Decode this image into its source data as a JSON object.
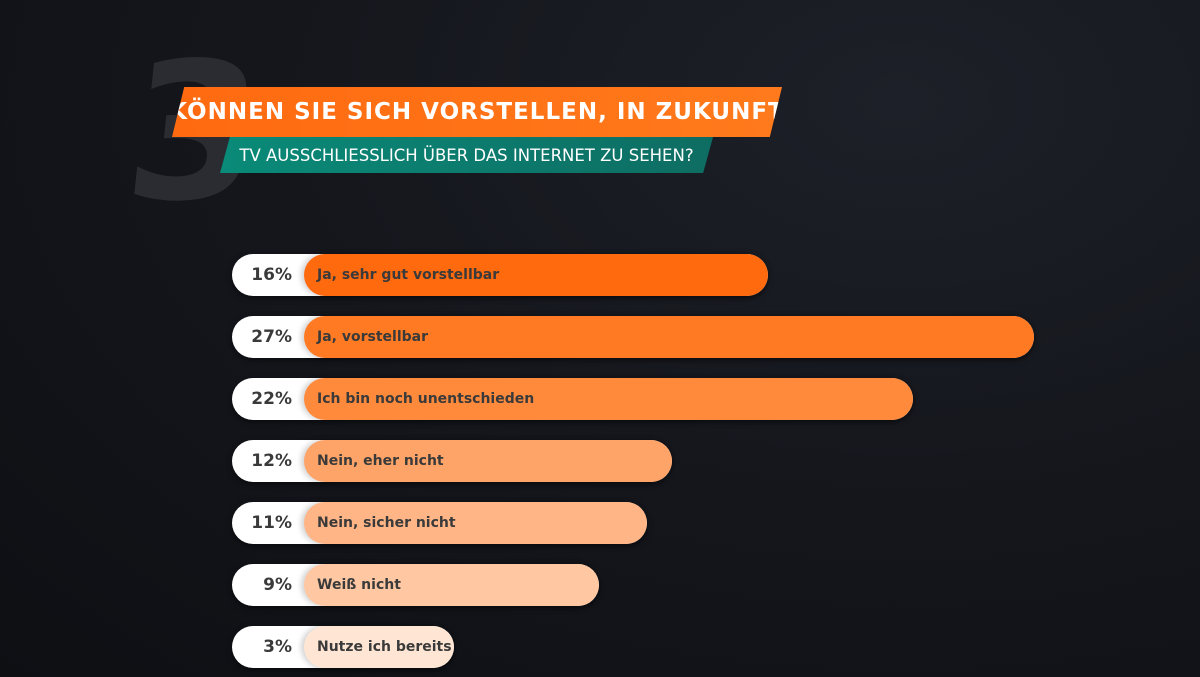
{
  "badge_number": "3",
  "title_line1": "KÖNNEN SIE SICH VORSTELLEN, IN ZUKUNFT",
  "title_line2": "TV AUSSCHLIESSLICH ÜBER DAS INTERNET ZU SEHEN?",
  "colors": {
    "title_orange": "#ff6a10",
    "subtitle_teal": "#0a8a78",
    "background": "#15171d"
  },
  "chart_data": {
    "type": "bar",
    "orientation": "horizontal",
    "title": "KÖNNEN SIE SICH VORSTELLEN, IN ZUKUNFT TV AUSSCHLIESSLICH ÜBER DAS INTERNET ZU SEHEN?",
    "unit": "%",
    "xlim": [
      0,
      27
    ],
    "categories": [
      "Ja, sehr gut vorstellbar",
      "Ja, vorstellbar",
      "Ich bin noch unentschieden",
      "Nein, eher nicht",
      "Nein, sicher nicht",
      "Weiß nicht",
      "Nutze ich bereits"
    ],
    "values": [
      16,
      27,
      22,
      12,
      11,
      9,
      3
    ],
    "value_labels": [
      "16%",
      "27%",
      "22%",
      "12%",
      "11%",
      "9%",
      "3%"
    ],
    "bar_colors": [
      "#ff6a0e",
      "#ff7a22",
      "#ff8a3c",
      "#ffa468",
      "#ffb585",
      "#ffc8a3",
      "#ffe6d4"
    ]
  }
}
